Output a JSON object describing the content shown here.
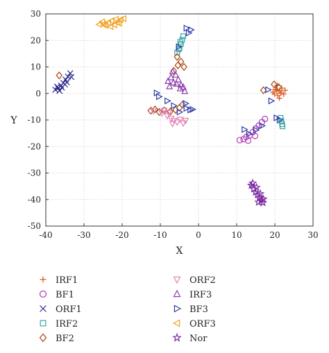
{
  "chart_data": {
    "type": "scatter",
    "xlabel": "X",
    "ylabel": "Y",
    "xlim": [
      -40,
      30
    ],
    "ylim": [
      -50,
      30
    ],
    "xticks": [
      -40,
      -30,
      -20,
      -10,
      0,
      10,
      20,
      30
    ],
    "yticks": [
      -50,
      -40,
      -30,
      -20,
      -10,
      0,
      10,
      20,
      30
    ],
    "grid": true,
    "legend_position": "bottom",
    "series": [
      {
        "name": "IRF1",
        "marker": "plus",
        "color": "#d9541a",
        "points": [
          [
            19.5,
            0.5
          ],
          [
            20.2,
            1.6
          ],
          [
            20.8,
            -0.8
          ],
          [
            21.3,
            0.8
          ],
          [
            21.8,
            2.0
          ],
          [
            22.3,
            -0.3
          ],
          [
            20.6,
            3.0
          ],
          [
            21.2,
            -1.8
          ],
          [
            22.7,
            1.2
          ],
          [
            19.9,
            -0.2
          ],
          [
            21.6,
            0.2
          ],
          [
            20.5,
            1.2
          ]
        ]
      },
      {
        "name": "BF1",
        "marker": "circle",
        "color": "#b03ab5",
        "points": [
          [
            10.8,
            -17.6
          ],
          [
            11.8,
            -17.2
          ],
          [
            12.5,
            -16.4
          ],
          [
            13.4,
            -15.8
          ],
          [
            14.2,
            -14.6
          ],
          [
            15.0,
            -13.2
          ],
          [
            15.8,
            -12.1
          ],
          [
            16.6,
            -10.8
          ],
          [
            17.4,
            -9.6
          ],
          [
            13.0,
            -17.8
          ],
          [
            14.8,
            -16.0
          ]
        ]
      },
      {
        "name": "ORF1",
        "marker": "x",
        "color": "#2c2a8a",
        "points": [
          [
            -37.5,
            1.4
          ],
          [
            -36.8,
            2.0
          ],
          [
            -36.0,
            3.0
          ],
          [
            -35.4,
            4.0
          ],
          [
            -34.8,
            5.2
          ],
          [
            -34.2,
            6.4
          ],
          [
            -33.6,
            7.6
          ],
          [
            -37.0,
            2.6
          ],
          [
            -35.8,
            2.2
          ],
          [
            -34.5,
            4.2
          ],
          [
            -33.3,
            6.2
          ],
          [
            -36.4,
            1.0
          ],
          [
            -35.0,
            3.4
          ]
        ]
      },
      {
        "name": "IRF2",
        "marker": "square",
        "color": "#3aa5a5",
        "points": [
          [
            -5.0,
            17.0
          ],
          [
            -4.6,
            18.6
          ],
          [
            -4.3,
            20.2
          ],
          [
            -4.0,
            21.6
          ],
          [
            -5.6,
            15.4
          ],
          [
            -5.2,
            16.6
          ],
          [
            21.5,
            -9.2
          ],
          [
            21.7,
            -10.4
          ],
          [
            21.9,
            -11.6
          ],
          [
            22.0,
            -12.4
          ],
          [
            -4.8,
            19.4
          ]
        ]
      },
      {
        "name": "BF2",
        "marker": "diamond",
        "color": "#a84510",
        "points": [
          [
            -36.5,
            6.8
          ],
          [
            -12.5,
            -6.5
          ],
          [
            -11.4,
            -6.0
          ],
          [
            -10.3,
            -7.0
          ],
          [
            -9.0,
            -6.4
          ],
          [
            -7.4,
            -6.8
          ],
          [
            -6.0,
            -6.2
          ],
          [
            -5.0,
            -5.4
          ],
          [
            -4.2,
            -4.2
          ],
          [
            -4.6,
            12.0
          ],
          [
            -5.4,
            10.6
          ],
          [
            -3.8,
            10.0
          ],
          [
            17.0,
            1.2
          ],
          [
            19.8,
            3.4
          ],
          [
            21.0,
            2.4
          ],
          [
            -6.5,
            8.5
          ],
          [
            -5.6,
            13.8
          ]
        ]
      },
      {
        "name": "ORF2",
        "marker": "triangle-down",
        "color": "#e382b6",
        "points": [
          [
            -11.8,
            -6.6
          ],
          [
            -9.6,
            -7.4
          ],
          [
            -8.2,
            -8.4
          ],
          [
            -7.2,
            -9.4
          ],
          [
            -6.4,
            -10.2
          ],
          [
            -5.6,
            -10.8
          ],
          [
            -4.8,
            -9.8
          ],
          [
            -4.0,
            -11.2
          ],
          [
            -3.4,
            -10.2
          ],
          [
            -6.8,
            -11.4
          ],
          [
            -9.0,
            -6.4
          ],
          [
            -7.8,
            -7.2
          ]
        ]
      },
      {
        "name": "IRF3",
        "marker": "triangle-up",
        "color": "#8a3aaa",
        "points": [
          [
            -8.0,
            4.6
          ],
          [
            -7.2,
            6.0
          ],
          [
            -6.6,
            4.0
          ],
          [
            -6.0,
            7.0
          ],
          [
            -5.3,
            5.2
          ],
          [
            -4.6,
            3.2
          ],
          [
            -7.6,
            2.6
          ],
          [
            -5.8,
            3.6
          ],
          [
            -6.8,
            8.2
          ],
          [
            -4.8,
            1.8
          ],
          [
            -3.6,
            0.8
          ],
          [
            -4.0,
            2.4
          ]
        ]
      },
      {
        "name": "BF3",
        "marker": "triangle-right",
        "color": "#2c3aa5",
        "points": [
          [
            -11.0,
            0.2
          ],
          [
            -10.4,
            -1.2
          ],
          [
            -8.2,
            -2.8
          ],
          [
            -6.5,
            -4.6
          ],
          [
            -5.0,
            -7.0
          ],
          [
            -3.2,
            -5.6
          ],
          [
            -2.2,
            -6.2
          ],
          [
            -1.6,
            -6.0
          ],
          [
            -2.6,
            22.8
          ],
          [
            -3.2,
            24.6
          ],
          [
            -5.2,
            17.6
          ],
          [
            -3.4,
            -3.8
          ],
          [
            12.0,
            -13.6
          ],
          [
            13.2,
            -15.2
          ],
          [
            15.0,
            -13.8
          ],
          [
            16.6,
            -12.2
          ],
          [
            18.2,
            1.4
          ],
          [
            19.0,
            -2.8
          ],
          [
            20.4,
            -9.2
          ],
          [
            21.2,
            -10.0
          ],
          [
            -2.0,
            24.0
          ]
        ]
      },
      {
        "name": "ORF3",
        "marker": "triangle-left",
        "color": "#f0a020",
        "points": [
          [
            -26.0,
            26.0
          ],
          [
            -25.2,
            27.0
          ],
          [
            -24.4,
            25.6
          ],
          [
            -23.6,
            26.6
          ],
          [
            -22.8,
            27.4
          ],
          [
            -22.0,
            25.8
          ],
          [
            -21.2,
            26.8
          ],
          [
            -20.4,
            27.8
          ],
          [
            -19.6,
            28.2
          ],
          [
            -24.8,
            26.2
          ],
          [
            -23.0,
            25.2
          ],
          [
            -21.6,
            28.0
          ],
          [
            -20.8,
            26.4
          ]
        ]
      },
      {
        "name": "Nor",
        "marker": "star",
        "color": "#7a2aa0",
        "points": [
          [
            13.8,
            -34.6
          ],
          [
            14.4,
            -36.0
          ],
          [
            14.9,
            -37.2
          ],
          [
            15.4,
            -38.2
          ],
          [
            15.9,
            -39.4
          ],
          [
            16.4,
            -40.2
          ],
          [
            16.9,
            -41.2
          ],
          [
            15.2,
            -35.4
          ],
          [
            16.2,
            -37.8
          ],
          [
            17.0,
            -39.8
          ],
          [
            14.2,
            -33.8
          ],
          [
            15.7,
            -41.0
          ]
        ]
      }
    ]
  }
}
